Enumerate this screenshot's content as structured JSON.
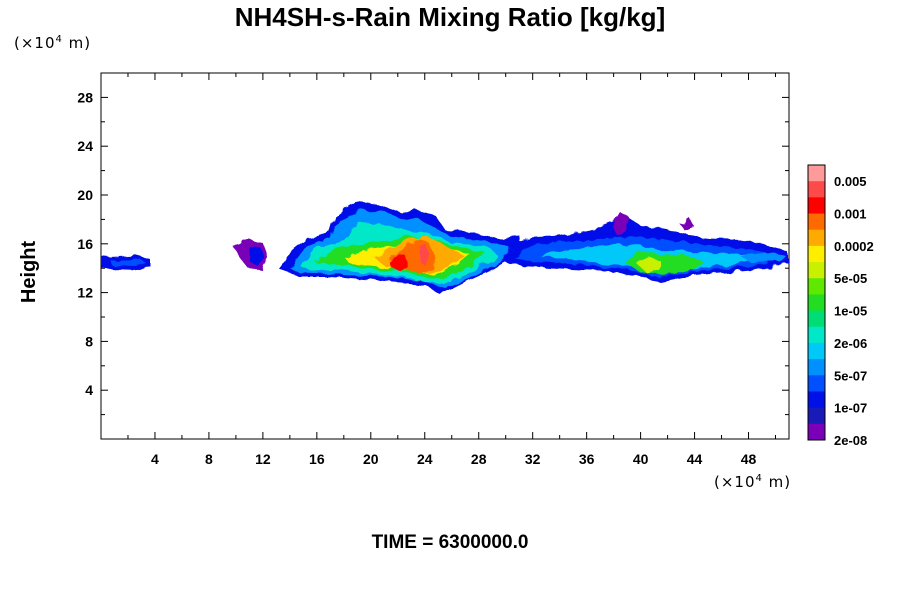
{
  "chart_data": {
    "type": "heatmap",
    "title": "NH4SH-s-Rain Mixing Ratio [kg/kg]",
    "ylabel": "Height",
    "y_unit": "(×10⁴ m)",
    "x_unit": "(×10⁴ m)",
    "footer": "TIME = 6300000.0",
    "xlim": [
      0,
      51
    ],
    "ylim": [
      0,
      30
    ],
    "x_ticks": [
      4,
      8,
      12,
      16,
      20,
      24,
      28,
      32,
      36,
      40,
      44,
      48
    ],
    "y_ticks": [
      4,
      8,
      12,
      16,
      20,
      24,
      28
    ],
    "legend": {
      "levels": [
        "0.005",
        "0.001",
        "0.0002",
        "5e-05",
        "1e-05",
        "2e-06",
        "5e-07",
        "1e-07",
        "2e-08"
      ],
      "colors": [
        "#ff9a9a",
        "#ff4a4a",
        "#ff0000",
        "#ff6a00",
        "#ffaa00",
        "#ffee00",
        "#c8f000",
        "#5fe800",
        "#22dd22",
        "#00dd77",
        "#00e8c8",
        "#00c8f8",
        "#0090ff",
        "#0050ff",
        "#0010e8",
        "#1a1ab8",
        "#7a00b8"
      ]
    },
    "field": [
      {
        "x": [
          0,
          3.7
        ],
        "y": [
          13.6,
          14.8
        ],
        "level": "1e-07"
      },
      {
        "x": [
          10,
          13.5
        ],
        "y": [
          13.4,
          15.5
        ],
        "level": "2e-08"
      },
      {
        "x": [
          14,
          30
        ],
        "y": [
          12.4,
          17
        ],
        "level": "2e-06"
      },
      {
        "x": [
          17.5,
          24
        ],
        "y": [
          16.5,
          19.3
        ],
        "level": "1e-07"
      },
      {
        "x": [
          22,
          25
        ],
        "y": [
          13.5,
          16
        ],
        "level": "0.0002"
      },
      {
        "x": [
          21.5,
          23
        ],
        "y": [
          13.5,
          14.5
        ],
        "level": "0.001"
      },
      {
        "x": [
          30,
          50.5
        ],
        "y": [
          13,
          17
        ],
        "level": "5e-07"
      },
      {
        "x": [
          38,
          40
        ],
        "y": [
          13.5,
          18.5
        ],
        "level": "2e-08"
      },
      {
        "x": [
          39,
          45
        ],
        "y": [
          13.2,
          15.5
        ],
        "level": "1e-05"
      }
    ]
  }
}
